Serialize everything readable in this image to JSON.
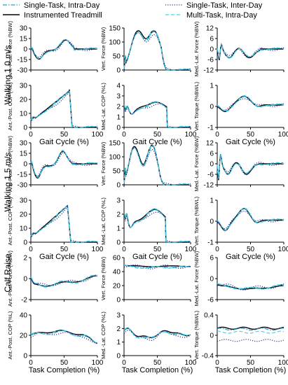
{
  "legend": [
    {
      "label": "Single-Task, Intra-Day",
      "color": "#1f9fd6",
      "dash": "dashdot"
    },
    {
      "label": "Single-Task, Inter-Day",
      "color": "#3a2a8c",
      "dash": "dotted"
    },
    {
      "label": "Instrumented Treadmill",
      "color": "#000000",
      "dash": "solid"
    },
    {
      "label": "Multi-Task, Intra-Day",
      "color": "#44d6e0",
      "dash": "dashed"
    }
  ],
  "row_labels": [
    "Walking 1.0 m/s",
    "Walking 1.5 m/s",
    "Calf Raise"
  ],
  "xlabels": {
    "gait": "Gait Cycle (%)",
    "task": "Task Completion (%)"
  },
  "chart_data": [
    {
      "type": "line",
      "ylabel": "Ant.-Post. Force (%BW)",
      "xlim": [
        0,
        100
      ],
      "ylim": [
        -30,
        30
      ],
      "yticks": [
        "30",
        "15",
        "0",
        "-15",
        "-30"
      ],
      "xticks": [],
      "shape": "ap_force"
    },
    {
      "type": "line",
      "ylabel": "Vert. Force (%BW)",
      "xlim": [
        0,
        100
      ],
      "ylim": [
        0,
        150
      ],
      "yticks": [
        "150",
        "100",
        "50",
        "0"
      ],
      "xticks": [],
      "shape": "vert_force"
    },
    {
      "type": "line",
      "ylabel": "Med.-Lat. Force (%BW)",
      "xlim": [
        0,
        100
      ],
      "ylim": [
        -12,
        12
      ],
      "yticks": [
        "12",
        "6",
        "0",
        "-6",
        "-12"
      ],
      "xticks": [],
      "shape": "ml_force"
    },
    {
      "type": "line",
      "ylabel": "Ant.-Post. COP (%L)",
      "xlim": [
        0,
        100
      ],
      "ylim": [
        0,
        30
      ],
      "yticks": [
        "30",
        "20",
        "10",
        "0"
      ],
      "xticks": [
        "0",
        "50",
        "100"
      ],
      "xlabel": "gait",
      "shape": "ap_cop"
    },
    {
      "type": "line",
      "ylabel": "Med.-Lat. COP (%L)",
      "xlim": [
        0,
        100
      ],
      "ylim": [
        0,
        4
      ],
      "yticks": [
        "4",
        "3",
        "2",
        "1",
        "0"
      ],
      "xticks": [
        "0",
        "50",
        "100"
      ],
      "xlabel": "gait",
      "shape": "ml_cop"
    },
    {
      "type": "line",
      "ylabel": "Vert. Torque (%BWL)",
      "xlim": [
        0,
        100
      ],
      "ylim": [
        -1,
        1
      ],
      "yticks": [
        "1",
        "0",
        "-1"
      ],
      "xticks": [
        "0",
        "50",
        "100"
      ],
      "xlabel": "gait",
      "shape": "torque"
    },
    {
      "type": "line",
      "ylabel": "Ant.-Post. Force (%BW)",
      "xlim": [
        0,
        100
      ],
      "ylim": [
        -30,
        30
      ],
      "yticks": [
        "30",
        "15",
        "0",
        "-15",
        "-30"
      ],
      "xticks": [],
      "shape": "ap_force2"
    },
    {
      "type": "line",
      "ylabel": "Vert. Force (%BW)",
      "xlim": [
        0,
        100
      ],
      "ylim": [
        0,
        150
      ],
      "yticks": [
        "150",
        "100",
        "50",
        "0"
      ],
      "xticks": [],
      "shape": "vert_force2"
    },
    {
      "type": "line",
      "ylabel": "Med.-Lat. Force (%BW)",
      "xlim": [
        0,
        100
      ],
      "ylim": [
        -12,
        12
      ],
      "yticks": [
        "12",
        "6",
        "0",
        "-6",
        "-12"
      ],
      "xticks": [],
      "shape": "ml_force2"
    },
    {
      "type": "line",
      "ylabel": "Ant.-Post. COP (%L)",
      "xlim": [
        0,
        100
      ],
      "ylim": [
        0,
        30
      ],
      "yticks": [
        "30",
        "20",
        "10",
        "0"
      ],
      "xticks": [
        "0",
        "50",
        "100"
      ],
      "xlabel": "gait",
      "shape": "ap_cop2"
    },
    {
      "type": "line",
      "ylabel": "Med.-Lat. COP (%L)",
      "xlim": [
        0,
        100
      ],
      "ylim": [
        0,
        3
      ],
      "yticks": [
        "3",
        "2",
        "1",
        "0"
      ],
      "xticks": [
        "0",
        "50",
        "100"
      ],
      "xlabel": "gait",
      "shape": "ml_cop2"
    },
    {
      "type": "line",
      "ylabel": "Vert. Torque (%BWL)",
      "xlim": [
        0,
        100
      ],
      "ylim": [
        -1,
        1
      ],
      "yticks": [
        "1",
        "0",
        "-1"
      ],
      "xticks": [
        "0",
        "50",
        "100"
      ],
      "xlabel": "gait",
      "shape": "torque2"
    },
    {
      "type": "line",
      "ylabel": "Ant.-Post. Force (%BW)",
      "xlim": [
        0,
        100
      ],
      "ylim": [
        -2,
        2
      ],
      "yticks": [
        "2",
        "0",
        "-2"
      ],
      "xticks": [],
      "shape": "cr_ap_force"
    },
    {
      "type": "line",
      "ylabel": "Vert. Force (%BW)",
      "xlim": [
        0,
        100
      ],
      "ylim": [
        0,
        60
      ],
      "yticks": [
        "60",
        "40",
        "20",
        "0"
      ],
      "xticks": [],
      "shape": "cr_vert"
    },
    {
      "type": "line",
      "ylabel": "Med.-Lat. Force (%BW)",
      "xlim": [
        0,
        100
      ],
      "ylim": [
        -6,
        6
      ],
      "yticks": [
        "6",
        "0",
        "-6"
      ],
      "xticks": [],
      "shape": "cr_ml"
    },
    {
      "type": "line",
      "ylabel": "Ant.-Post. COP (%L)",
      "xlim": [
        0,
        100
      ],
      "ylim": [
        0,
        40
      ],
      "yticks": [
        "40",
        "20",
        "0"
      ],
      "xticks": [
        "0",
        "50",
        "100"
      ],
      "xlabel": "task",
      "shape": "cr_ap_cop"
    },
    {
      "type": "line",
      "ylabel": "Med.-Lat. COP (%L)",
      "xlim": [
        0,
        100
      ],
      "ylim": [
        0,
        3
      ],
      "yticks": [
        "3",
        "2",
        "1",
        "0"
      ],
      "xticks": [
        "0",
        "50",
        "100"
      ],
      "xlabel": "task",
      "shape": "cr_ml_cop"
    },
    {
      "type": "line",
      "ylabel": "Vert. Torque (%BWL)",
      "xlim": [
        0,
        100
      ],
      "ylim": [
        -0.4,
        0.4
      ],
      "yticks": [
        "0.4",
        "0",
        "-0.4"
      ],
      "xticks": [
        "0",
        "50",
        "100"
      ],
      "xlabel": "task",
      "shape": "cr_torque"
    }
  ]
}
